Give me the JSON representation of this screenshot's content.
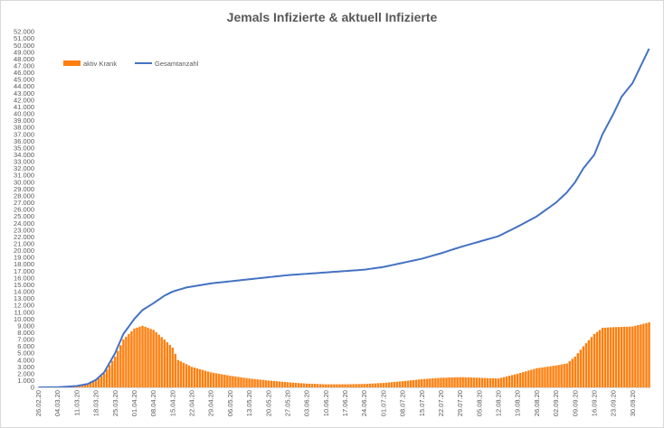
{
  "chart_data": {
    "type": "bar+line",
    "title": "Jemals Infizierte & aktuell Infizierte",
    "xlabel": "",
    "ylabel": "",
    "ylim": [
      0,
      52000
    ],
    "y_tick_step": 1000,
    "grid": false,
    "legend_position": "top-left",
    "x_range": [
      "2020-02-26",
      "2020-10-06"
    ],
    "x_tick_labels": [
      "26.02.20",
      "04.03.20",
      "11.03.20",
      "18.03.20",
      "25.03.20",
      "01.04.20",
      "08.04.20",
      "15.04.20",
      "22.04.20",
      "29.04.20",
      "06.05.20",
      "13.05.20",
      "20.05.20",
      "27.05.20",
      "03.06.20",
      "10.06.20",
      "17.06.20",
      "24.06.20",
      "01.07.20",
      "08.07.20",
      "15.07.20",
      "22.07.20",
      "29.07.20",
      "05.08.20",
      "12.08.20",
      "19.08.20",
      "26.08.20",
      "02.09.20",
      "09.09.20",
      "16.09.20",
      "23.09.20",
      "30.09.20"
    ],
    "series": [
      {
        "name": "aktiv Krank",
        "type": "bar",
        "color": "#ff7f0e",
        "points": [
          [
            "2020-02-26",
            0
          ],
          [
            "2020-03-04",
            20
          ],
          [
            "2020-03-11",
            200
          ],
          [
            "2020-03-15",
            500
          ],
          [
            "2020-03-18",
            1000
          ],
          [
            "2020-03-21",
            2000
          ],
          [
            "2020-03-25",
            4500
          ],
          [
            "2020-03-28",
            7000
          ],
          [
            "2020-04-01",
            8600
          ],
          [
            "2020-04-04",
            9000
          ],
          [
            "2020-04-08",
            8400
          ],
          [
            "2020-04-12",
            7000
          ],
          [
            "2020-04-15",
            5800
          ],
          [
            "2020-04-17",
            4000
          ],
          [
            "2020-04-22",
            3000
          ],
          [
            "2020-04-29",
            2200
          ],
          [
            "2020-05-06",
            1700
          ],
          [
            "2020-05-13",
            1300
          ],
          [
            "2020-05-20",
            1000
          ],
          [
            "2020-05-27",
            750
          ],
          [
            "2020-06-03",
            550
          ],
          [
            "2020-06-10",
            450
          ],
          [
            "2020-06-17",
            450
          ],
          [
            "2020-06-24",
            500
          ],
          [
            "2020-07-01",
            650
          ],
          [
            "2020-07-08",
            900
          ],
          [
            "2020-07-15",
            1200
          ],
          [
            "2020-07-22",
            1400
          ],
          [
            "2020-07-29",
            1500
          ],
          [
            "2020-08-05",
            1400
          ],
          [
            "2020-08-12",
            1300
          ],
          [
            "2020-08-19",
            2000
          ],
          [
            "2020-08-26",
            2800
          ],
          [
            "2020-09-02",
            3200
          ],
          [
            "2020-09-06",
            3500
          ],
          [
            "2020-09-09",
            4500
          ],
          [
            "2020-09-12",
            6000
          ],
          [
            "2020-09-16",
            7800
          ],
          [
            "2020-09-19",
            8700
          ],
          [
            "2020-09-23",
            8800
          ],
          [
            "2020-09-30",
            8900
          ],
          [
            "2020-10-06",
            9500
          ]
        ]
      },
      {
        "name": "Gesamtanzahl",
        "type": "line",
        "color": "#4472c4",
        "points": [
          [
            "2020-02-26",
            0
          ],
          [
            "2020-03-04",
            20
          ],
          [
            "2020-03-11",
            200
          ],
          [
            "2020-03-15",
            500
          ],
          [
            "2020-03-18",
            1100
          ],
          [
            "2020-03-21",
            2200
          ],
          [
            "2020-03-25",
            5000
          ],
          [
            "2020-03-28",
            7800
          ],
          [
            "2020-04-01",
            10000
          ],
          [
            "2020-04-04",
            11300
          ],
          [
            "2020-04-08",
            12300
          ],
          [
            "2020-04-12",
            13400
          ],
          [
            "2020-04-15",
            14000
          ],
          [
            "2020-04-20",
            14600
          ],
          [
            "2020-04-29",
            15200
          ],
          [
            "2020-05-06",
            15500
          ],
          [
            "2020-05-13",
            15800
          ],
          [
            "2020-05-20",
            16100
          ],
          [
            "2020-05-27",
            16400
          ],
          [
            "2020-06-03",
            16600
          ],
          [
            "2020-06-10",
            16800
          ],
          [
            "2020-06-17",
            17000
          ],
          [
            "2020-06-24",
            17200
          ],
          [
            "2020-07-01",
            17600
          ],
          [
            "2020-07-08",
            18200
          ],
          [
            "2020-07-15",
            18800
          ],
          [
            "2020-07-22",
            19600
          ],
          [
            "2020-07-29",
            20500
          ],
          [
            "2020-08-05",
            21300
          ],
          [
            "2020-08-12",
            22100
          ],
          [
            "2020-08-19",
            23500
          ],
          [
            "2020-08-26",
            25000
          ],
          [
            "2020-09-02",
            27000
          ],
          [
            "2020-09-06",
            28500
          ],
          [
            "2020-09-09",
            30000
          ],
          [
            "2020-09-12",
            32000
          ],
          [
            "2020-09-16",
            34000
          ],
          [
            "2020-09-19",
            37000
          ],
          [
            "2020-09-23",
            40000
          ],
          [
            "2020-09-26",
            42500
          ],
          [
            "2020-09-30",
            44500
          ],
          [
            "2020-10-03",
            47000
          ],
          [
            "2020-10-06",
            49500
          ]
        ]
      }
    ]
  }
}
